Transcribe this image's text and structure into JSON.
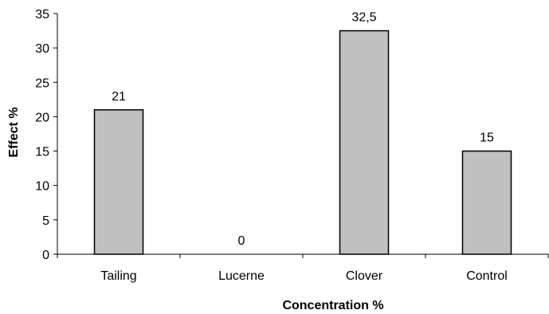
{
  "chart_data": {
    "type": "bar",
    "title": "",
    "xlabel": "Concentration %",
    "ylabel": "Effect  %",
    "categories": [
      "Tailing",
      "Lucerne",
      "Clover",
      "Control"
    ],
    "values": [
      21,
      0,
      32.5,
      15
    ],
    "value_labels": [
      "21",
      "0",
      "32,5",
      "15"
    ],
    "ylim": [
      0,
      35
    ],
    "yticks": [
      0,
      5,
      10,
      15,
      20,
      25,
      30,
      35
    ],
    "ytick_labels": [
      "0",
      "5",
      "10",
      "15",
      "20",
      "25",
      "30",
      "35"
    ],
    "grid": false,
    "legend": "none",
    "colors": {
      "bar_fill": "#c0c0c0",
      "bar_stroke": "#000000",
      "axis": "#000000"
    }
  }
}
